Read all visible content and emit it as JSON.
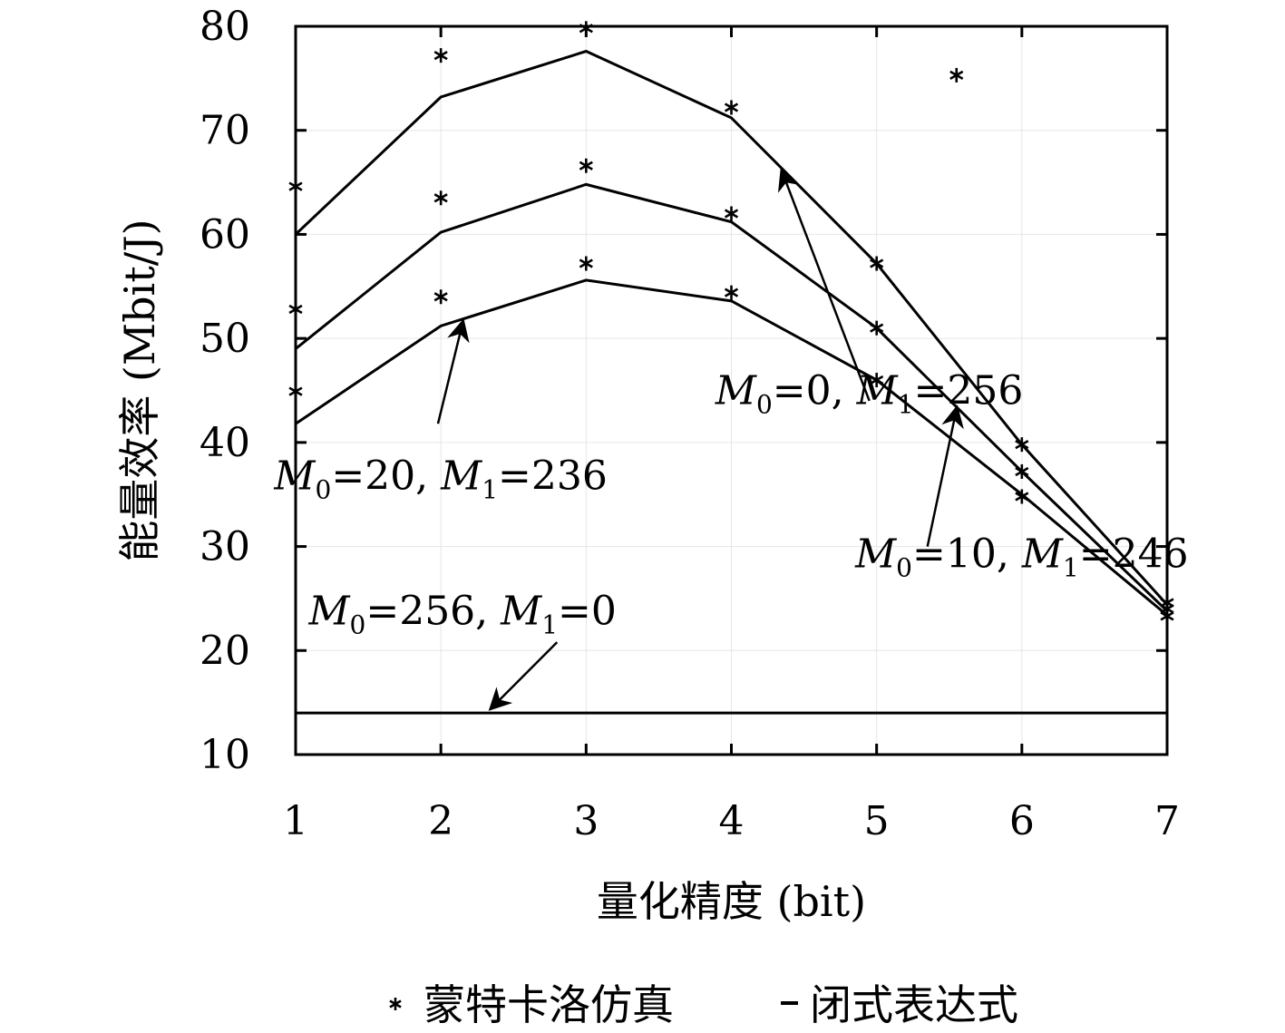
{
  "chart_data": {
    "type": "line",
    "xlabel": "量化精度 (bit)",
    "ylabel": "能量效率 (Mbit/J)",
    "xlim": [
      1,
      7
    ],
    "ylim": [
      10,
      80
    ],
    "xticks": [
      1,
      2,
      3,
      4,
      5,
      6,
      7
    ],
    "yticks": [
      10,
      20,
      30,
      40,
      50,
      60,
      70,
      80
    ],
    "grid": true,
    "legend_position": "bottom",
    "legend": [
      {
        "marker": "asterisk",
        "label": "蒙特卡洛仿真"
      },
      {
        "marker": "line",
        "label": "闭式表达式"
      }
    ],
    "x": [
      1,
      2,
      3,
      4,
      5,
      6,
      7
    ],
    "series": [
      {
        "label_m0": "256",
        "label_m1": "0",
        "closed_form": [
          14,
          14,
          14,
          14,
          14,
          14,
          14
        ],
        "simulation": []
      },
      {
        "label_m0": "20",
        "label_m1": "236",
        "closed_form": [
          41.8,
          51.2,
          55.6,
          53.6,
          46.0,
          35.0,
          23.4
        ],
        "simulation": [
          [
            1,
            44.9
          ],
          [
            2,
            54.0
          ],
          [
            3,
            57.2
          ],
          [
            4,
            54.4
          ],
          [
            5,
            46.0
          ],
          [
            6,
            34.8
          ],
          [
            7,
            23.3
          ]
        ]
      },
      {
        "label_m0": "10",
        "label_m1": "246",
        "closed_form": [
          49.0,
          60.2,
          64.8,
          61.2,
          51.0,
          37.2,
          23.8
        ],
        "simulation": [
          [
            1,
            52.8
          ],
          [
            2,
            63.5
          ],
          [
            3,
            66.6
          ],
          [
            4,
            62.0
          ],
          [
            5,
            51.0
          ],
          [
            6,
            37.2
          ],
          [
            7,
            24.0
          ]
        ]
      },
      {
        "label_m0": "0",
        "label_m1": "256",
        "closed_form": [
          60.0,
          73.2,
          77.6,
          71.2,
          57.2,
          39.8,
          24.4
        ],
        "simulation": [
          [
            1,
            64.6
          ],
          [
            2,
            77.2
          ],
          [
            3,
            79.8
          ],
          [
            4,
            72.2
          ],
          [
            5,
            57.2
          ],
          [
            5.55,
            75.3
          ],
          [
            6,
            39.8
          ],
          [
            7,
            24.6
          ]
        ]
      }
    ],
    "annotations": [
      {
        "m0": "0",
        "m1": "256",
        "x": 4.95,
        "y": 43.7,
        "arrow_from": [
          4.95,
          44.0
        ],
        "arrow_to": [
          4.35,
          66.0
        ]
      },
      {
        "m0": "20",
        "m1": "236",
        "x": 2.0,
        "y": 35.5,
        "arrow_from": [
          1.98,
          41.8
        ],
        "arrow_to": [
          2.15,
          51.5
        ]
      },
      {
        "m0": "10",
        "m1": "246",
        "x": 6.0,
        "y": 28.0,
        "arrow_from": [
          5.35,
          30.0
        ],
        "arrow_to": [
          5.55,
          43.2
        ]
      },
      {
        "m0": "256",
        "m1": "0",
        "x": 2.15,
        "y": 22.5,
        "arrow_from": [
          2.8,
          20.8
        ],
        "arrow_to": [
          2.35,
          14.5
        ]
      }
    ]
  }
}
